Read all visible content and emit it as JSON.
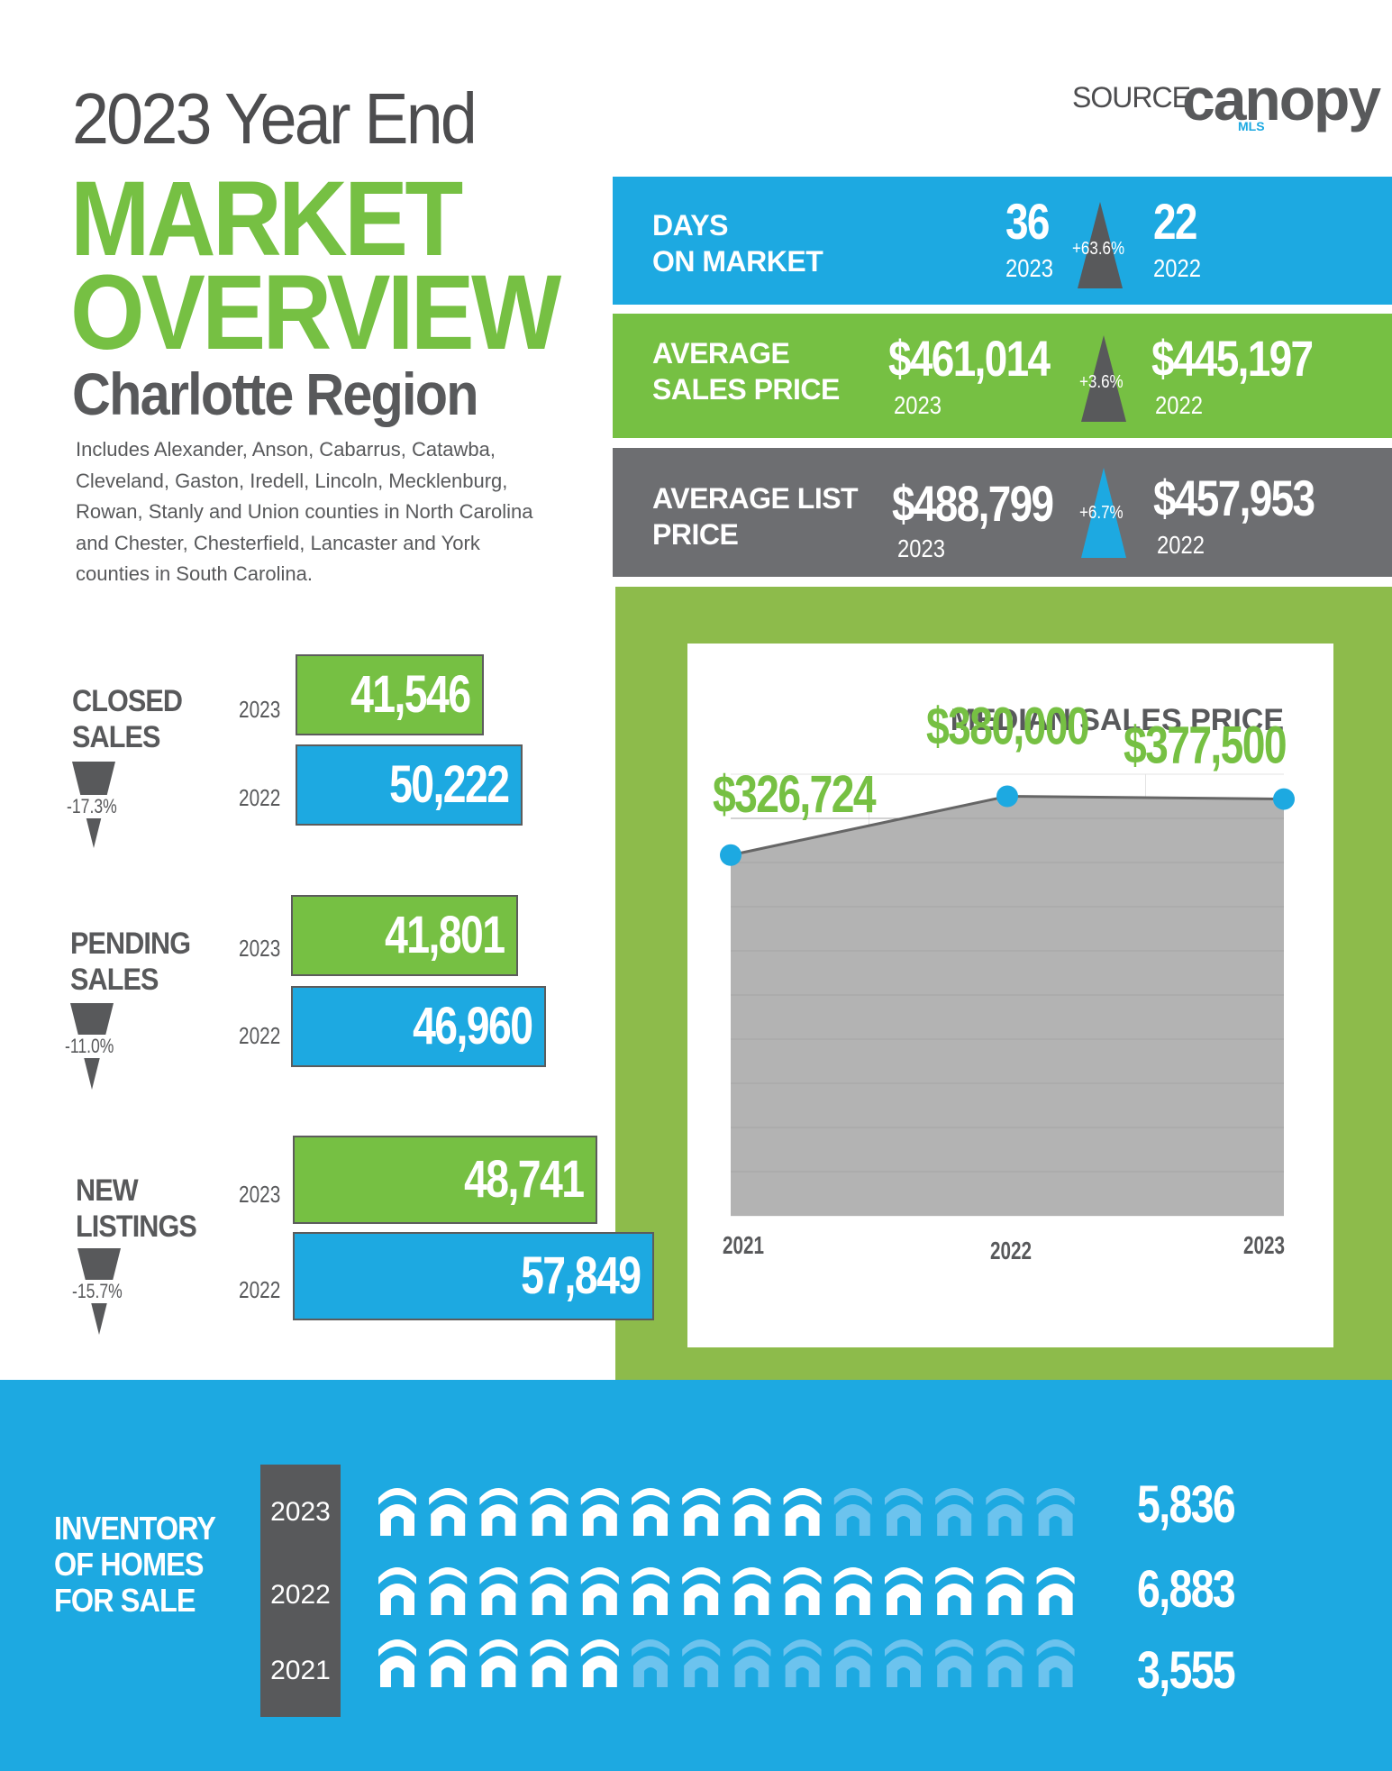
{
  "header": {
    "year_end": "2023 Year End",
    "title_line1": "MARKET",
    "title_line2": "OVERVIEW",
    "region": "Charlotte Region",
    "description": "Includes Alexander, Anson, Cabarrus, Catawba, Cleveland, Gaston, Iredell, Lincoln, Mecklenburg, Rowan, Stanly and Union counties in North Carolina and Chester, Chesterfield, Lancaster and York counties in South Carolina."
  },
  "logo": {
    "source": "SOURCE",
    "brand": "canopy",
    "sub": "MLS"
  },
  "colors": {
    "green": "#76c043",
    "blue": "#1da9e1",
    "gray": "#6d6e71",
    "dark": "#58595b"
  },
  "stats": [
    {
      "label": "DAYS\nON  MARKET",
      "current": "36",
      "current_year": "2023",
      "change": "+63.6%",
      "previous": "22",
      "previous_year": "2022",
      "direction": "up"
    },
    {
      "label": "AVERAGE\nSALES PRICE",
      "current": "$461,014",
      "current_year": "2023",
      "change": "+3.6%",
      "previous": "$445,197",
      "previous_year": "2022",
      "direction": "up"
    },
    {
      "label": "AVERAGE LIST\nPRICE",
      "current": "$488,799",
      "current_year": "2023",
      "change": "+6.7%",
      "previous": "$457,953",
      "previous_year": "2022",
      "direction": "up"
    }
  ],
  "sales": [
    {
      "label": "CLOSED\nSALES",
      "change": "-17.3%",
      "year_2023": "2023",
      "value_2023": "41,546",
      "year_2022": "2022",
      "value_2022": "50,222"
    },
    {
      "label": "PENDING\nSALES",
      "change": "-11.0%",
      "year_2023": "2023",
      "value_2023": "41,801",
      "year_2022": "2022",
      "value_2022": "46,960"
    },
    {
      "label": "NEW\nLISTINGS",
      "change": "-15.7%",
      "year_2023": "2023",
      "value_2023": "48,741",
      "year_2022": "2022",
      "value_2022": "57,849"
    }
  ],
  "chart_data": {
    "type": "area",
    "title": "MEDIAN SALES PRICE",
    "categories": [
      "2021",
      "2022",
      "2023"
    ],
    "values": [
      326724,
      380000,
      377500
    ],
    "value_labels": [
      "$326,724",
      "$380,000",
      "$377,500"
    ],
    "grid": true
  },
  "inventory": {
    "label": "INVENTORY\nOF HOMES\nFOR SALE",
    "rows": [
      {
        "year": "2023",
        "value": "5,836",
        "filled_icons": 9,
        "total_icons": 14
      },
      {
        "year": "2022",
        "value": "6,883",
        "filled_icons": 14,
        "total_icons": 14
      },
      {
        "year": "2021",
        "value": "3,555",
        "filled_icons": 5,
        "total_icons": 14
      }
    ]
  }
}
